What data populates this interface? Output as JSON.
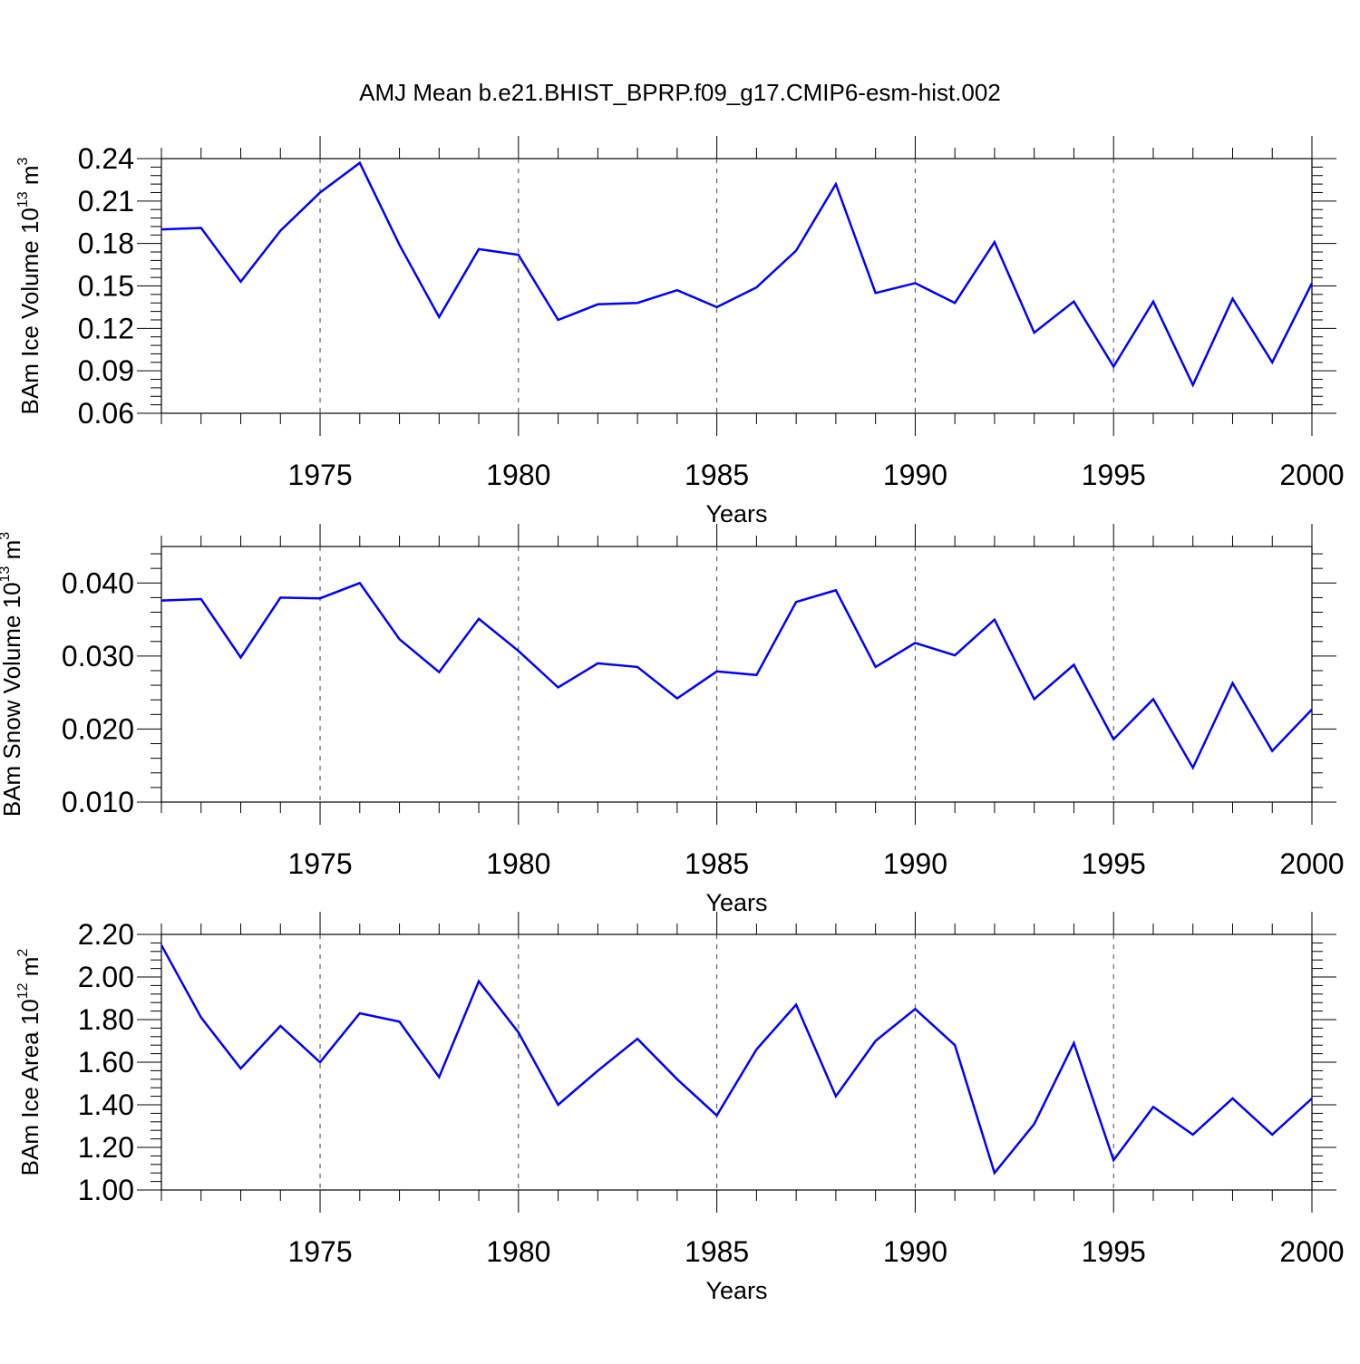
{
  "figure": {
    "title": "AMJ Mean b.e21.BHIST_BPRP.f09_g17.CMIP6-esm-hist.002"
  },
  "chart_data": [
    {
      "type": "line",
      "title": "AMJ Mean b.e21.BHIST_BPRP.f09_g17.CMIP6-esm-hist.002",
      "xlabel": "Years",
      "ylabel": {
        "prefix": "BAm Ice Volume 10",
        "exp": "13",
        "unit": " m",
        "unit_exp": "3"
      },
      "xlim": [
        1971,
        2000
      ],
      "ylim": [
        0.06,
        0.24
      ],
      "x_ticks": [
        "1975",
        "1980",
        "1985",
        "1990",
        "1995",
        "2000"
      ],
      "y_ticks": [
        "0.06",
        "0.09",
        "0.12",
        "0.15",
        "0.18",
        "0.21",
        "0.24"
      ],
      "grid": "vertical dashed at major x ticks",
      "line_color": "#0000ff",
      "x": [
        1971,
        1972,
        1973,
        1974,
        1975,
        1976,
        1977,
        1978,
        1979,
        1980,
        1981,
        1982,
        1983,
        1984,
        1985,
        1986,
        1987,
        1988,
        1989,
        1990,
        1991,
        1992,
        1993,
        1994,
        1995,
        1996,
        1997,
        1998,
        1999,
        2000
      ],
      "values": [
        0.19,
        0.191,
        0.153,
        0.189,
        0.216,
        0.237,
        0.179,
        0.128,
        0.176,
        0.172,
        0.126,
        0.137,
        0.138,
        0.147,
        0.135,
        0.149,
        0.175,
        0.222,
        0.145,
        0.152,
        0.138,
        0.181,
        0.117,
        0.139,
        0.093,
        0.139,
        0.08,
        0.141,
        0.096,
        0.152
      ]
    },
    {
      "type": "line",
      "xlabel": "Years",
      "ylabel": {
        "prefix": "BAm Snow Volume 10",
        "exp": "13",
        "unit": " m",
        "unit_exp": "3"
      },
      "xlim": [
        1971,
        2000
      ],
      "ylim": [
        0.01,
        0.045
      ],
      "x_ticks": [
        "1975",
        "1980",
        "1985",
        "1990",
        "1995",
        "2000"
      ],
      "y_ticks": [
        "0.010",
        "0.020",
        "0.030",
        "0.040"
      ],
      "grid": "vertical dashed at major x ticks",
      "line_color": "#0000ff",
      "x": [
        1971,
        1972,
        1973,
        1974,
        1975,
        1976,
        1977,
        1978,
        1979,
        1980,
        1981,
        1982,
        1983,
        1984,
        1985,
        1986,
        1987,
        1988,
        1989,
        1990,
        1991,
        1992,
        1993,
        1994,
        1995,
        1996,
        1997,
        1998,
        1999,
        2000
      ],
      "values": [
        0.0376,
        0.0378,
        0.0298,
        0.038,
        0.0379,
        0.04,
        0.0323,
        0.0278,
        0.0351,
        0.0307,
        0.0257,
        0.029,
        0.0285,
        0.0242,
        0.0279,
        0.0274,
        0.0374,
        0.039,
        0.0285,
        0.0318,
        0.0301,
        0.035,
        0.0241,
        0.0288,
        0.0186,
        0.0241,
        0.0147,
        0.0263,
        0.017,
        0.0227
      ]
    },
    {
      "type": "line",
      "xlabel": "Years",
      "ylabel": {
        "prefix": "BAm Ice Area 10",
        "exp": "12",
        "unit": " m",
        "unit_exp": "2"
      },
      "xlim": [
        1971,
        2000
      ],
      "ylim": [
        1.0,
        2.2
      ],
      "x_ticks": [
        "1975",
        "1980",
        "1985",
        "1990",
        "1995",
        "2000"
      ],
      "y_ticks": [
        "1.00",
        "1.20",
        "1.40",
        "1.60",
        "1.80",
        "2.00",
        "2.20"
      ],
      "grid": "vertical dashed at major x ticks",
      "line_color": "#0000ff",
      "x": [
        1971,
        1972,
        1973,
        1974,
        1975,
        1976,
        1977,
        1978,
        1979,
        1980,
        1981,
        1982,
        1983,
        1984,
        1985,
        1986,
        1987,
        1988,
        1989,
        1990,
        1991,
        1992,
        1993,
        1994,
        1995,
        1996,
        1997,
        1998,
        1999,
        2000
      ],
      "values": [
        2.15,
        1.81,
        1.57,
        1.77,
        1.6,
        1.83,
        1.79,
        1.53,
        1.98,
        1.74,
        1.4,
        1.56,
        1.71,
        1.52,
        1.35,
        1.66,
        1.87,
        1.44,
        1.7,
        1.85,
        1.68,
        1.08,
        1.31,
        1.69,
        1.14,
        1.39,
        1.26,
        1.43,
        1.26,
        1.43
      ]
    }
  ]
}
